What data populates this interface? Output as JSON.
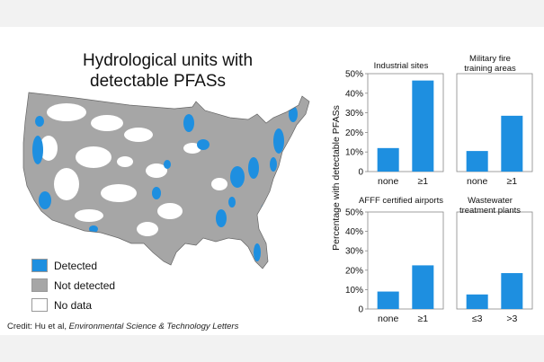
{
  "title": {
    "line1": "Hydrological units with",
    "line2": "detectable PFASs"
  },
  "legend": [
    {
      "label": "Detected",
      "color": "#1e8fe0"
    },
    {
      "label": "Not detected",
      "color": "#a6a6a6"
    },
    {
      "label": "No data",
      "color": "#ffffff"
    }
  ],
  "credit": {
    "prefix": "Credit:  Hu et al, ",
    "journal": "Environmental Science & Technology Letters"
  },
  "map": {
    "land_color": "#a6a6a6",
    "nodata_color": "#ffffff",
    "detected_color": "#1e8fe0"
  },
  "y_axis_label": "Percentage with detectable PFASs",
  "chart_data": [
    {
      "type": "bar",
      "title": [
        "Industrial sites"
      ],
      "categories": [
        "none",
        "≥1"
      ],
      "values": [
        12,
        46.5
      ],
      "ylim": [
        0,
        50
      ],
      "yticks": [
        "0",
        "10%",
        "20%",
        "30%",
        "40%",
        "50%"
      ],
      "bar_color": "#1e8fe0"
    },
    {
      "type": "bar",
      "title": [
        "Military fire",
        "training areas"
      ],
      "categories": [
        "none",
        "≥1"
      ],
      "values": [
        10.5,
        28.5
      ],
      "ylim": [
        0,
        50
      ],
      "yticks": [],
      "bar_color": "#1e8fe0"
    },
    {
      "type": "bar",
      "title": [
        "AFFF certified airports"
      ],
      "categories": [
        "none",
        "≥1"
      ],
      "values": [
        9,
        22.5
      ],
      "ylim": [
        0,
        50
      ],
      "yticks": [
        "0",
        "10%",
        "20%",
        "30%",
        "40%",
        "50%"
      ],
      "bar_color": "#1e8fe0"
    },
    {
      "type": "bar",
      "title": [
        "Wastewater",
        "treatment plants"
      ],
      "categories": [
        "≤3",
        ">3"
      ],
      "values": [
        7.5,
        18.5
      ],
      "ylim": [
        0,
        50
      ],
      "yticks": [],
      "bar_color": "#1e8fe0"
    }
  ]
}
